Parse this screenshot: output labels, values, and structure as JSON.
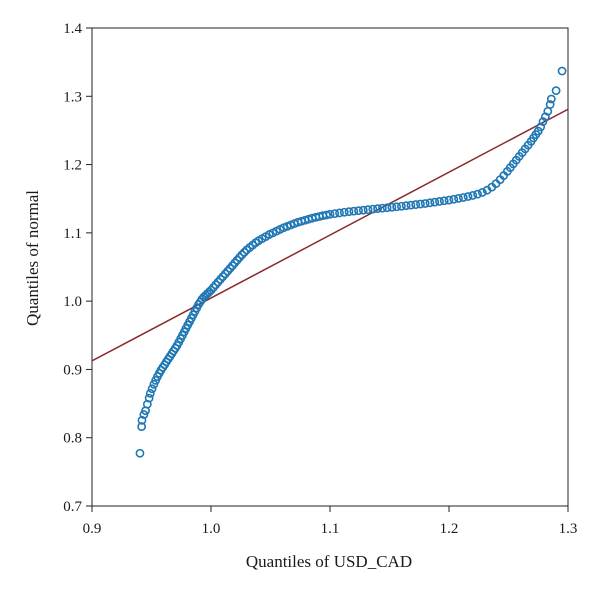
{
  "chart_data": {
    "type": "scatter",
    "title": "",
    "xlabel": "Quantiles of USD_CAD",
    "ylabel": "Quantiles of normal",
    "xlim": [
      0.9,
      1.3
    ],
    "ylim": [
      0.7,
      1.4
    ],
    "xticks": [
      "0.9",
      "1.0",
      "1.1",
      "1.2",
      "1.3"
    ],
    "yticks": [
      "0.7",
      "0.8",
      "0.9",
      "1.0",
      "1.1",
      "1.2",
      "1.3",
      "1.4"
    ],
    "grid": false,
    "legend": "none",
    "series": [
      {
        "kind": "points",
        "marker": "open-circle",
        "color": "#1f77b4",
        "points": [
          [
            0.9403,
            0.7773
          ],
          [
            0.9417,
            0.8163
          ],
          [
            0.942,
            0.8255
          ],
          [
            0.9436,
            0.8339
          ],
          [
            0.945,
            0.8396
          ],
          [
            0.9465,
            0.849
          ],
          [
            0.948,
            0.858
          ],
          [
            0.949,
            0.865
          ],
          [
            0.9505,
            0.8716
          ],
          [
            0.952,
            0.8782
          ],
          [
            0.9535,
            0.884
          ],
          [
            0.955,
            0.8895
          ],
          [
            0.9565,
            0.8943
          ],
          [
            0.958,
            0.899
          ],
          [
            0.9595,
            0.903
          ],
          [
            0.961,
            0.9068
          ],
          [
            0.9625,
            0.911
          ],
          [
            0.964,
            0.915
          ],
          [
            0.9655,
            0.919
          ],
          [
            0.967,
            0.923
          ],
          [
            0.9685,
            0.927
          ],
          [
            0.97,
            0.931
          ],
          [
            0.9715,
            0.935
          ],
          [
            0.973,
            0.94
          ],
          [
            0.9745,
            0.945
          ],
          [
            0.976,
            0.95
          ],
          [
            0.9775,
            0.955
          ],
          [
            0.979,
            0.96
          ],
          [
            0.9805,
            0.965
          ],
          [
            0.982,
            0.97
          ],
          [
            0.9835,
            0.975
          ],
          [
            0.985,
            0.98
          ],
          [
            0.9865,
            0.985
          ],
          [
            0.988,
            0.99
          ],
          [
            0.9895,
            0.995
          ],
          [
            0.991,
            0.999
          ],
          [
            0.9925,
            1.003
          ],
          [
            0.994,
            1.006
          ],
          [
            0.9955,
            1.0085
          ],
          [
            0.997,
            1.011
          ],
          [
            0.9985,
            1.0135
          ],
          [
            1.0,
            1.016
          ],
          [
            1.002,
            1.02
          ],
          [
            1.004,
            1.024
          ],
          [
            1.006,
            1.028
          ],
          [
            1.008,
            1.032
          ],
          [
            1.01,
            1.036
          ],
          [
            1.012,
            1.04
          ],
          [
            1.014,
            1.044
          ],
          [
            1.016,
            1.048
          ],
          [
            1.018,
            1.052
          ],
          [
            1.02,
            1.056
          ],
          [
            1.022,
            1.06
          ],
          [
            1.024,
            1.064
          ],
          [
            1.026,
            1.068
          ],
          [
            1.028,
            1.0715
          ],
          [
            1.03,
            1.075
          ],
          [
            1.0325,
            1.0785
          ],
          [
            1.035,
            1.082
          ],
          [
            1.0375,
            1.0855
          ],
          [
            1.04,
            1.0885
          ],
          [
            1.043,
            1.0915
          ],
          [
            1.046,
            1.0945
          ],
          [
            1.049,
            1.0975
          ],
          [
            1.052,
            1.1
          ],
          [
            1.055,
            1.1025
          ],
          [
            1.058,
            1.105
          ],
          [
            1.061,
            1.1075
          ],
          [
            1.064,
            1.1095
          ],
          [
            1.067,
            1.1115
          ],
          [
            1.07,
            1.1135
          ],
          [
            1.073,
            1.1155
          ],
          [
            1.076,
            1.117
          ],
          [
            1.079,
            1.1185
          ],
          [
            1.082,
            1.12
          ],
          [
            1.085,
            1.1215
          ],
          [
            1.088,
            1.1228
          ],
          [
            1.091,
            1.124
          ],
          [
            1.094,
            1.1252
          ],
          [
            1.097,
            1.1262
          ],
          [
            1.1,
            1.1272
          ],
          [
            1.104,
            1.1282
          ],
          [
            1.108,
            1.1292
          ],
          [
            1.112,
            1.1302
          ],
          [
            1.116,
            1.131
          ],
          [
            1.12,
            1.1318
          ],
          [
            1.124,
            1.1325
          ],
          [
            1.128,
            1.1332
          ],
          [
            1.132,
            1.134
          ],
          [
            1.136,
            1.1348
          ],
          [
            1.14,
            1.1355
          ],
          [
            1.144,
            1.1362
          ],
          [
            1.148,
            1.1368
          ],
          [
            1.152,
            1.1375
          ],
          [
            1.156,
            1.1382
          ],
          [
            1.16,
            1.139
          ],
          [
            1.164,
            1.1398
          ],
          [
            1.168,
            1.1406
          ],
          [
            1.172,
            1.1414
          ],
          [
            1.176,
            1.1422
          ],
          [
            1.18,
            1.143
          ],
          [
            1.184,
            1.144
          ],
          [
            1.188,
            1.145
          ],
          [
            1.192,
            1.146
          ],
          [
            1.196,
            1.147
          ],
          [
            1.2,
            1.148
          ],
          [
            1.204,
            1.1492
          ],
          [
            1.208,
            1.1505
          ],
          [
            1.212,
            1.1518
          ],
          [
            1.216,
            1.1532
          ],
          [
            1.22,
            1.1548
          ],
          [
            1.224,
            1.1567
          ],
          [
            1.228,
            1.1592
          ],
          [
            1.232,
            1.1625
          ],
          [
            1.236,
            1.167
          ],
          [
            1.2395,
            1.172
          ],
          [
            1.243,
            1.178
          ],
          [
            1.246,
            1.184
          ],
          [
            1.249,
            1.19
          ],
          [
            1.2515,
            1.1955
          ],
          [
            1.254,
            1.201
          ],
          [
            1.2565,
            1.2065
          ],
          [
            1.259,
            1.212
          ],
          [
            1.2615,
            1.2175
          ],
          [
            1.264,
            1.223
          ],
          [
            1.2665,
            1.2285
          ],
          [
            1.269,
            1.234
          ],
          [
            1.271,
            1.239
          ],
          [
            1.273,
            1.244
          ],
          [
            1.275,
            1.249
          ],
          [
            1.277,
            1.255
          ],
          [
            1.279,
            1.263
          ],
          [
            1.281,
            1.27
          ],
          [
            1.283,
            1.278
          ],
          [
            1.285,
            1.288
          ],
          [
            1.286,
            1.296
          ],
          [
            1.29,
            1.3083
          ],
          [
            1.295,
            1.337
          ]
        ]
      },
      {
        "kind": "line",
        "color": "#8b2a2a",
        "points": [
          [
            0.9,
            0.9125
          ],
          [
            1.3,
            1.281
          ]
        ]
      }
    ]
  }
}
